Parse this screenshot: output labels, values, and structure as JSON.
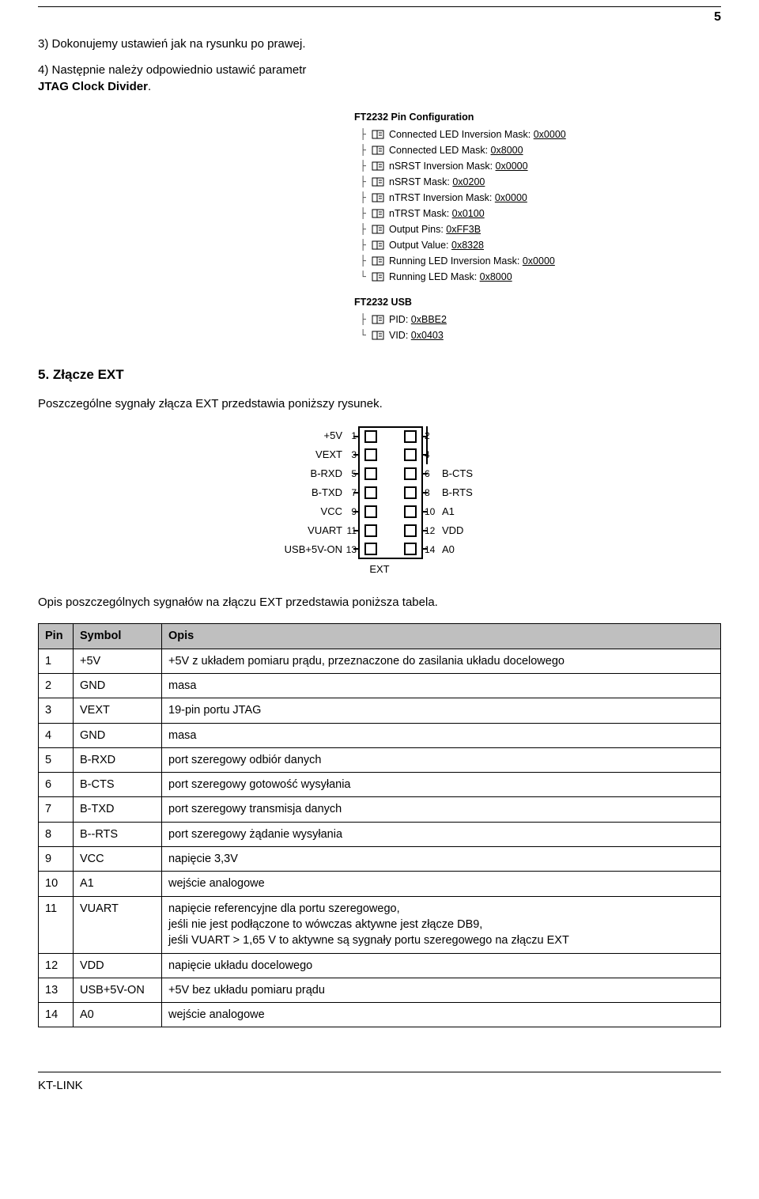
{
  "page_number": "5",
  "intro": {
    "step3": "3) Dokonujemy ustawień jak na rysunku po prawej.",
    "step4_prefix": "4)  Następnie należy odpowiednio ustawić parametr ",
    "step4_bold": "JTAG Clock Divider",
    "step4_suffix": "."
  },
  "tree1": {
    "caption": "FT2232 Pin Configuration",
    "items": [
      {
        "label": "Connected LED Inversion Mask:",
        "value": "0x0000"
      },
      {
        "label": "Connected LED Mask:",
        "value": "0x8000"
      },
      {
        "label": "nSRST Inversion Mask:",
        "value": "0x0000"
      },
      {
        "label": "nSRST Mask:",
        "value": "0x0200"
      },
      {
        "label": "nTRST Inversion Mask:",
        "value": "0x0000"
      },
      {
        "label": "nTRST Mask:",
        "value": "0x0100"
      },
      {
        "label": "Output Pins:",
        "value": "0xFF3B"
      },
      {
        "label": "Output Value:",
        "value": "0x8328"
      },
      {
        "label": "Running LED Inversion Mask:",
        "value": "0x0000"
      },
      {
        "label": "Running LED Mask:",
        "value": "0x8000"
      }
    ]
  },
  "tree2": {
    "caption": "FT2232 USB",
    "items": [
      {
        "label": "PID:",
        "value": "0xBBE2"
      },
      {
        "label": "VID:",
        "value": "0x0403"
      }
    ]
  },
  "section5": {
    "heading": "5. Złącze EXT",
    "para1": "Poszczególne sygnały złącza EXT przedstawia poniższy rysunek.",
    "para2": "Opis poszczególnych sygnałów na złączu EXT przedstawia poniższa tabela."
  },
  "connector": {
    "caption": "EXT",
    "rows": [
      {
        "left_label": "+5V",
        "left_pin": "1",
        "right_pin": "2",
        "right_label": ""
      },
      {
        "left_label": "VEXT",
        "left_pin": "3",
        "right_pin": "4",
        "right_label": ""
      },
      {
        "left_label": "B-RXD",
        "left_pin": "5",
        "right_pin": "6",
        "right_label": "B-CTS"
      },
      {
        "left_label": "B-TXD",
        "left_pin": "7",
        "right_pin": "8",
        "right_label": "B-RTS"
      },
      {
        "left_label": "VCC",
        "left_pin": "9",
        "right_pin": "10",
        "right_label": "A1"
      },
      {
        "left_label": "VUART",
        "left_pin": "11",
        "right_pin": "12",
        "right_label": "VDD"
      },
      {
        "left_label": "USB+5V-ON",
        "left_pin": "13",
        "right_pin": "14",
        "right_label": "A0"
      }
    ]
  },
  "table": {
    "headers": [
      "Pin",
      "Symbol",
      "Opis"
    ],
    "rows": [
      [
        "1",
        "+5V",
        "+5V z układem pomiaru prądu, przeznaczone do zasilania układu docelowego"
      ],
      [
        "2",
        "GND",
        "masa"
      ],
      [
        "3",
        "VEXT",
        "19-pin portu JTAG"
      ],
      [
        "4",
        "GND",
        "masa"
      ],
      [
        "5",
        "B-RXD",
        "port szeregowy odbiór danych"
      ],
      [
        "6",
        "B-CTS",
        "port szeregowy gotowość wysyłania"
      ],
      [
        "7",
        "B-TXD",
        "port szeregowy transmisja danych"
      ],
      [
        "8",
        "B--RTS",
        "port szeregowy żądanie wysyłania"
      ],
      [
        "9",
        "VCC",
        "napięcie 3,3V"
      ],
      [
        "10",
        "A1",
        "wejście analogowe"
      ],
      [
        "11",
        "VUART",
        "napięcie referencyjne dla portu szeregowego,\njeśli nie jest podłączone to wówczas aktywne jest złącze DB9,\njeśli VUART > 1,65 V to aktywne są sygnały portu szeregowego na złączu EXT"
      ],
      [
        "12",
        "VDD",
        "napięcie układu docelowego"
      ],
      [
        "13",
        "USB+5V-ON",
        "+5V bez układu pomiaru prądu"
      ],
      [
        "14",
        "A0",
        "wejście analogowe"
      ]
    ]
  },
  "footer": "KT-LINK"
}
